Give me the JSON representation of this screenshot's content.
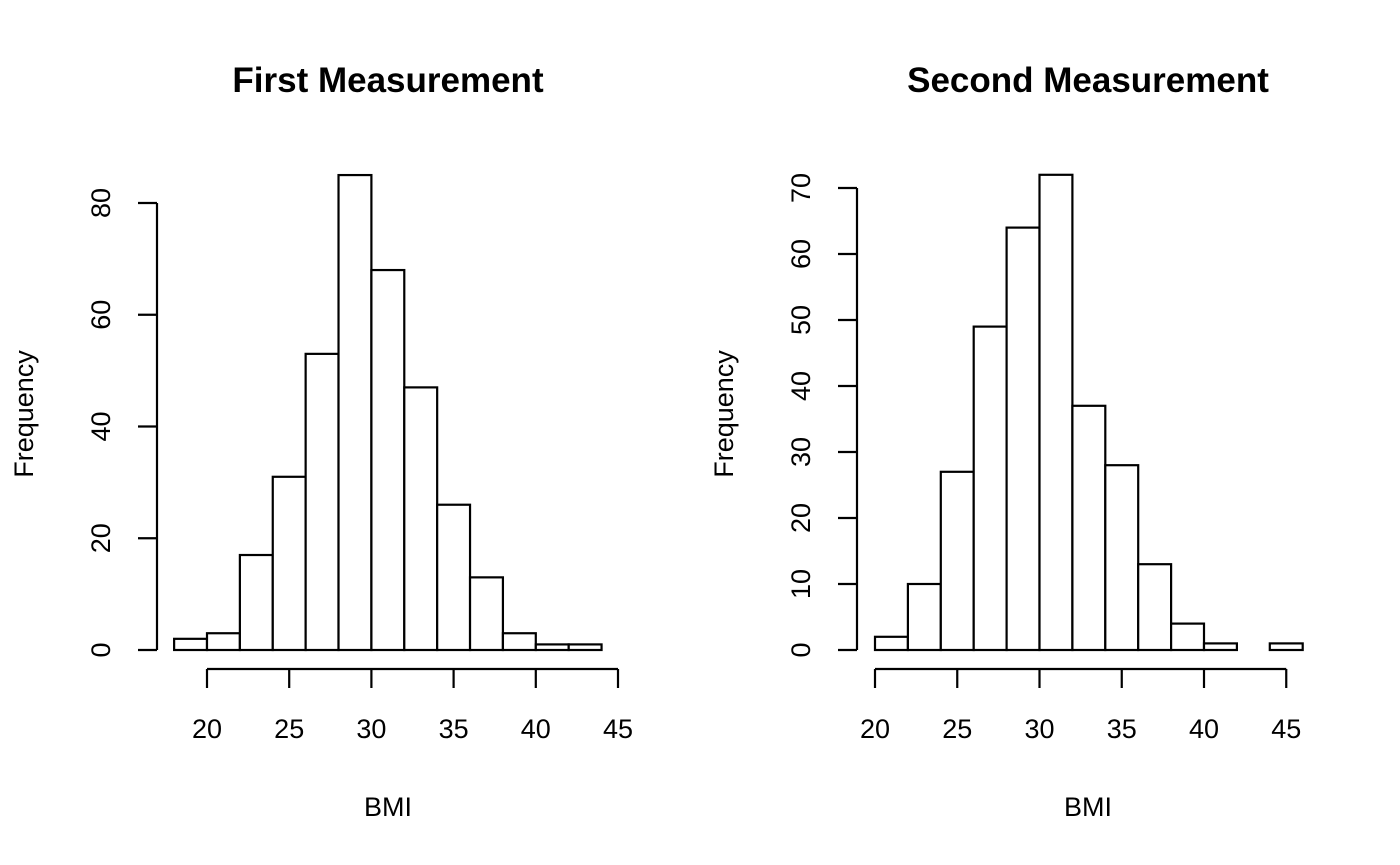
{
  "chart_data": [
    {
      "type": "bar",
      "title": "First Measurement",
      "xlabel": "BMI",
      "ylabel": "Frequency",
      "bin_edges": [
        18,
        20,
        22,
        24,
        26,
        28,
        30,
        32,
        34,
        36,
        38,
        40,
        42,
        44
      ],
      "values": [
        2,
        3,
        17,
        31,
        53,
        85,
        68,
        47,
        26,
        13,
        3,
        1,
        1
      ],
      "xticks": [
        20,
        25,
        30,
        35,
        40,
        45
      ],
      "yticks": [
        0,
        20,
        40,
        60,
        80
      ],
      "xlim": [
        20,
        45
      ],
      "ylim": [
        0,
        80
      ]
    },
    {
      "type": "bar",
      "title": "Second Measurement",
      "xlabel": "BMI",
      "ylabel": "Frequency",
      "bin_edges": [
        20,
        22,
        24,
        26,
        28,
        30,
        32,
        34,
        36,
        38,
        40,
        42,
        44,
        46
      ],
      "values": [
        2,
        10,
        27,
        49,
        64,
        72,
        37,
        28,
        13,
        4,
        1,
        0,
        1
      ],
      "xticks": [
        20,
        25,
        30,
        35,
        40,
        45
      ],
      "yticks": [
        0,
        10,
        20,
        30,
        40,
        50,
        60,
        70
      ],
      "xlim": [
        20,
        45
      ],
      "ylim": [
        0,
        70
      ]
    }
  ]
}
